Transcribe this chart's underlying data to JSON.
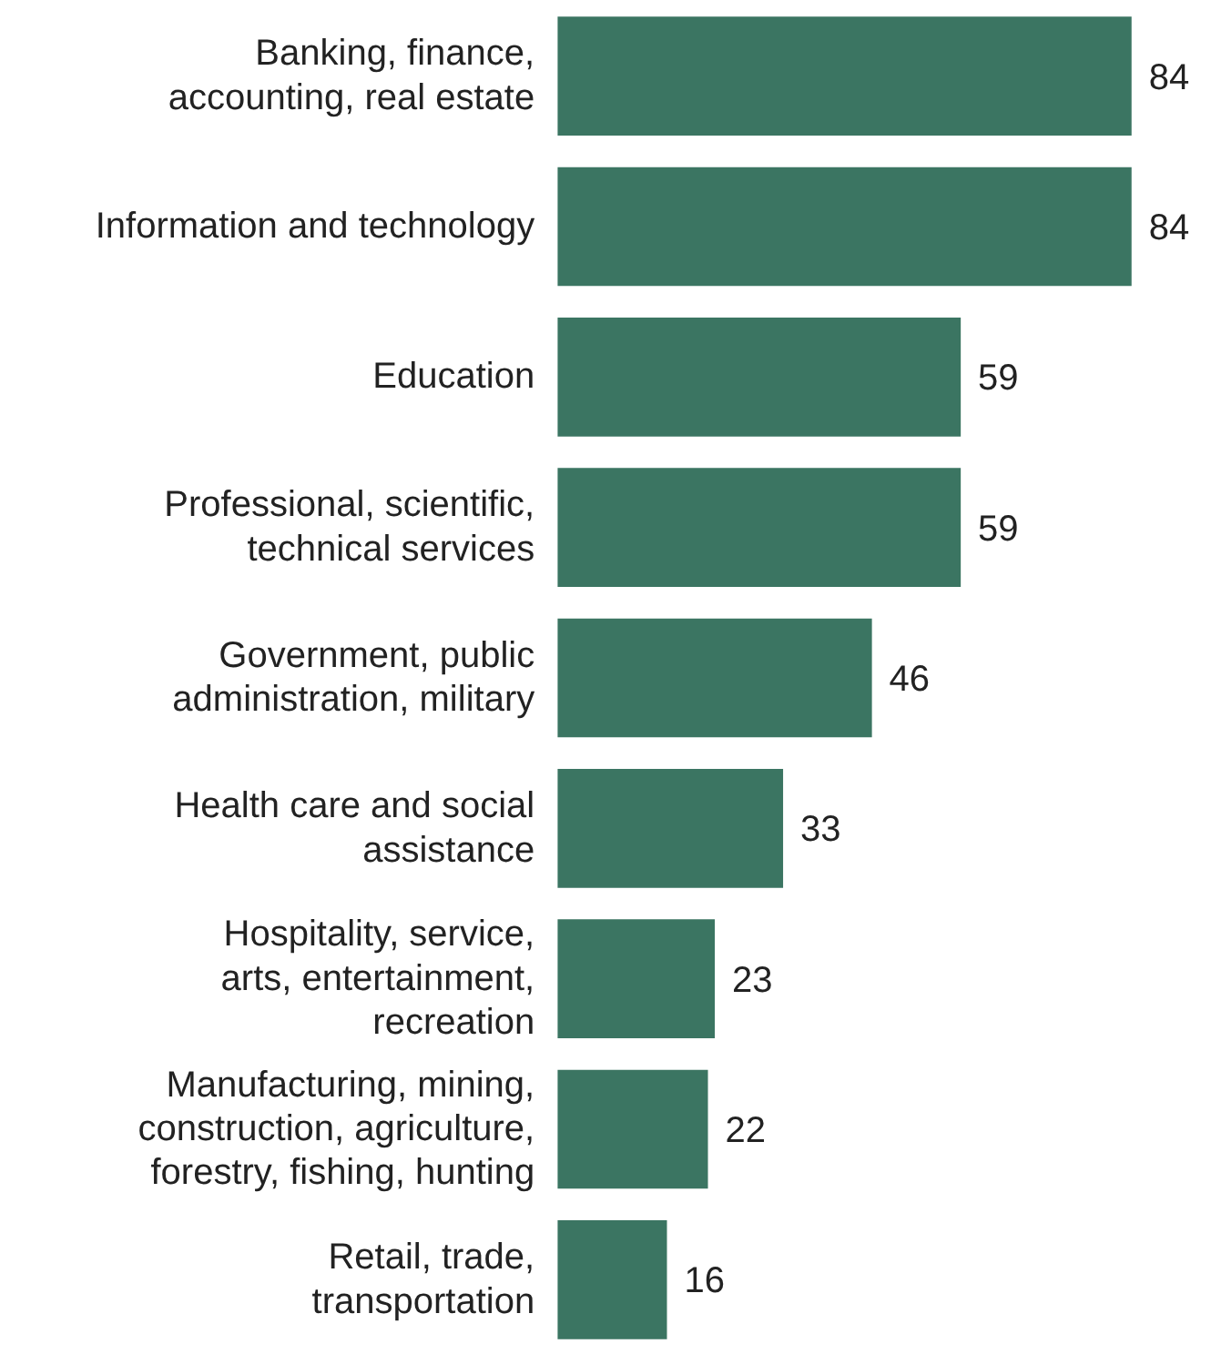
{
  "chart_data": {
    "type": "bar",
    "orientation": "horizontal",
    "data_labels": true,
    "color": "#3b7562",
    "categories": [
      "Banking, finance, accounting, real estate",
      "Information and technology",
      "Education",
      "Professional, scientific, technical services",
      "Government, public administration, military",
      "Health care and social assistance",
      "Hospitality, service, arts, entertainment, recreation",
      "Manufacturing, mining, construction, agriculture, forestry, fishing, hunting",
      "Retail, trade, transportation"
    ],
    "values": [
      84,
      84,
      59,
      59,
      46,
      33,
      23,
      22,
      16
    ]
  }
}
